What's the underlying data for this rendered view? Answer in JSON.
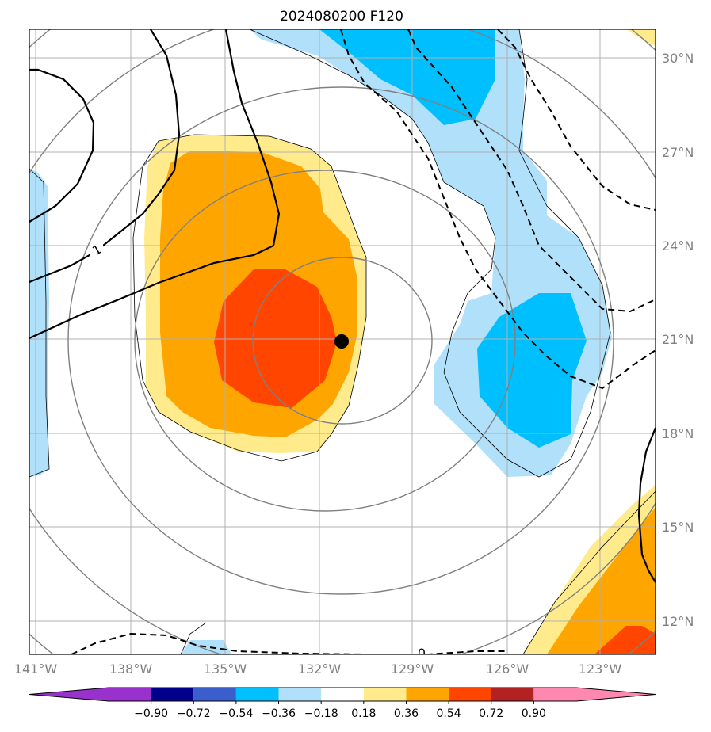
{
  "title": "2024080200 F120",
  "map": {
    "lon_range": [
      -141.2,
      -121.8
    ],
    "lat_range": [
      10.9,
      30.8
    ],
    "gridlines": true,
    "center_marker": {
      "lon": -131.3,
      "lat": 21.0
    },
    "lon_ticks": [
      "141°W",
      "138°W",
      "135°W",
      "132°W",
      "129°W",
      "126°W",
      "123°W"
    ],
    "lat_ticks": [
      "30°N",
      "27°N",
      "24°N",
      "21°N",
      "18°N",
      "15°N",
      "12°N"
    ],
    "contour_labels": [
      "1",
      "0"
    ],
    "colors": {
      "land_grid": "#b0b0b0",
      "marker": "#000000"
    }
  },
  "colorbar": {
    "tick_labels": [
      "−0.90",
      "−0.72",
      "−0.54",
      "−0.36",
      "−0.18",
      "0.18",
      "0.36",
      "0.54",
      "0.72",
      "0.90"
    ],
    "levels": [
      -0.9,
      -0.72,
      -0.54,
      -0.36,
      -0.18,
      0.18,
      0.36,
      0.54,
      0.72,
      0.9
    ],
    "colors": [
      "#9932cc",
      "#00008b",
      "#3a5fcd",
      "#00bfff",
      "#b0e0fa",
      "#ffffff",
      "#ffeb8c",
      "#ffa500",
      "#ff4500",
      "#b22222",
      "#ff88b0"
    ],
    "extend": "both"
  }
}
